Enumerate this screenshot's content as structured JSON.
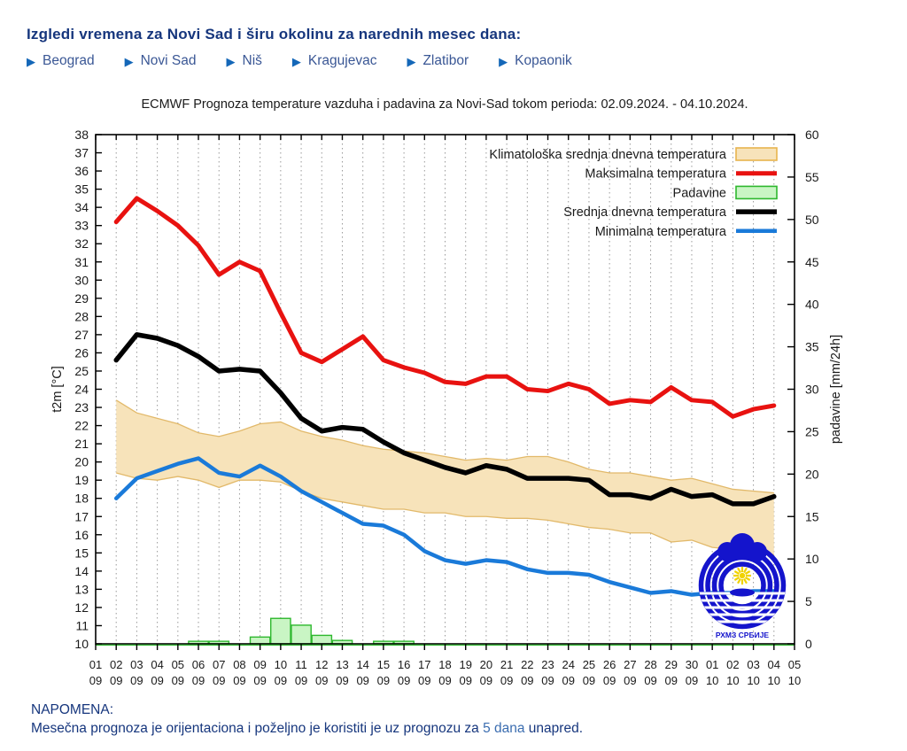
{
  "header": {
    "title": "Izgledi vremena za Novi Sad i širu okolinu za narednih mesec dana:",
    "city_links": [
      {
        "label": "Beograd"
      },
      {
        "label": "Novi Sad"
      },
      {
        "label": "Niš"
      },
      {
        "label": "Kragujevac"
      },
      {
        "label": "Zlatibor"
      },
      {
        "label": "Kopaonik"
      }
    ],
    "arrow_glyph": "▶"
  },
  "footer": {
    "note_heading": "NAPOMENA:",
    "note_before": "Mesečna prognoza je orijentaciona i poželjno je koristiti je uz prognozu za ",
    "note_link": "5 dana",
    "note_after": " unapred."
  },
  "logo": {
    "text": "РХМЗ СРБИЈЕ",
    "color": "#1414cc",
    "sun_color": "#f0d200"
  },
  "colors": {
    "heading_navy": "#16367d",
    "link_blue": "#3a5795",
    "arrow_blue": "#1467b8",
    "max_red": "#e81210",
    "mean_black": "#000000",
    "min_blue": "#1a7ad9",
    "band_fill": "#f7e3ba",
    "band_edge": "#e2b96a",
    "bar_fill": "#c9f5c4",
    "bar_edge": "#2eb82e",
    "grid_gray": "#999999"
  },
  "chart_data": {
    "type": "line+bar",
    "title": "ECMWF Prognoza temperature vazduha i padavina za Novi-Sad tokom perioda: 02.09.2024. - 04.10.2024.",
    "x_axis": {
      "tick_days": [
        "01",
        "02",
        "03",
        "04",
        "05",
        "06",
        "07",
        "08",
        "09",
        "10",
        "11",
        "12",
        "13",
        "14",
        "15",
        "16",
        "17",
        "18",
        "19",
        "20",
        "21",
        "22",
        "23",
        "24",
        "25",
        "26",
        "27",
        "28",
        "29",
        "30",
        "01",
        "02",
        "03",
        "04",
        "05"
      ],
      "tick_months": [
        "09",
        "09",
        "09",
        "09",
        "09",
        "09",
        "09",
        "09",
        "09",
        "09",
        "09",
        "09",
        "09",
        "09",
        "09",
        "09",
        "09",
        "09",
        "09",
        "09",
        "09",
        "09",
        "09",
        "09",
        "09",
        "09",
        "09",
        "09",
        "09",
        "09",
        "10",
        "10",
        "10",
        "10",
        "10"
      ],
      "data_start_tick": 1
    },
    "y_left": {
      "label": "t2m [°C]",
      "min": 10,
      "max": 38,
      "step": 1
    },
    "y_right": {
      "label": "padavine [mm/24h]",
      "min": 0,
      "max": 60,
      "step": 5
    },
    "grid": {
      "vertical_dotted": true,
      "horizontal": false
    },
    "legend_position": "top-right-inside",
    "band": {
      "name": "Klimatološka srednja dnevna temperatura",
      "upper": [
        23.4,
        22.7,
        22.4,
        22.1,
        21.6,
        21.4,
        21.7,
        22.1,
        22.2,
        21.7,
        21.4,
        21.2,
        20.9,
        20.7,
        20.6,
        20.5,
        20.3,
        20.1,
        20.2,
        20.1,
        20.3,
        20.3,
        20.0,
        19.6,
        19.4,
        19.4,
        19.2,
        19.0,
        19.1,
        18.8,
        18.5,
        18.4,
        18.3
      ],
      "lower": [
        19.4,
        19.1,
        19.0,
        19.2,
        19.0,
        18.6,
        19.0,
        19.0,
        18.9,
        18.4,
        18.0,
        17.8,
        17.6,
        17.4,
        17.4,
        17.2,
        17.2,
        17.0,
        17.0,
        16.9,
        16.9,
        16.8,
        16.6,
        16.4,
        16.3,
        16.1,
        16.1,
        15.6,
        15.7,
        15.3,
        15.2,
        15.0,
        14.9
      ]
    },
    "series": [
      {
        "name": "Maksimalna temperatura",
        "color": "#e81210",
        "width": 5,
        "values": [
          33.2,
          34.5,
          33.8,
          33.0,
          31.9,
          30.3,
          31.0,
          30.5,
          28.2,
          26.0,
          25.5,
          26.2,
          26.9,
          25.6,
          25.2,
          24.9,
          24.4,
          24.3,
          24.7,
          24.7,
          24.0,
          23.9,
          24.3,
          24.0,
          23.2,
          23.4,
          23.3,
          24.1,
          23.4,
          23.3,
          22.5,
          22.9,
          23.1
        ]
      },
      {
        "name": "Srednja dnevna temperatura",
        "color": "#000000",
        "width": 5.5,
        "values": [
          25.6,
          27.0,
          26.8,
          26.4,
          25.8,
          25.0,
          25.1,
          25.0,
          23.8,
          22.4,
          21.7,
          21.9,
          21.8,
          21.1,
          20.5,
          20.1,
          19.7,
          19.4,
          19.8,
          19.6,
          19.1,
          19.1,
          19.1,
          19.0,
          18.2,
          18.2,
          18.0,
          18.5,
          18.1,
          18.2,
          17.7,
          17.7,
          18.1
        ]
      },
      {
        "name": "Minimalna temperatura",
        "color": "#1a7ad9",
        "width": 4.5,
        "values": [
          18.0,
          19.1,
          19.5,
          19.9,
          20.2,
          19.4,
          19.2,
          19.8,
          19.2,
          18.4,
          17.8,
          17.2,
          16.6,
          16.5,
          16.0,
          15.1,
          14.6,
          14.4,
          14.6,
          14.5,
          14.1,
          13.9,
          13.9,
          13.8,
          13.4,
          13.1,
          12.8,
          12.9,
          12.7,
          12.8,
          12.8,
          12.9,
          12.9
        ]
      }
    ],
    "bars": {
      "name": "Padavine",
      "axis": "right",
      "values": [
        0,
        0,
        0,
        0,
        0.3,
        0.3,
        0,
        0.8,
        3.0,
        2.2,
        1.0,
        0.4,
        0,
        0.3,
        0.3,
        0,
        0,
        0,
        0,
        0,
        0,
        0,
        0,
        0,
        0,
        0,
        0,
        0,
        0,
        0,
        0,
        0,
        0
      ]
    },
    "legend": [
      {
        "label": "Klimatološka srednja dnevna temperatura",
        "swatch": "band"
      },
      {
        "label": "Maksimalna temperatura",
        "swatch": "line",
        "color": "#e81210",
        "width": 5
      },
      {
        "label": "Padavine",
        "swatch": "bar"
      },
      {
        "label": "Srednja dnevna temperatura",
        "swatch": "line",
        "color": "#000000",
        "width": 5.5
      },
      {
        "label": "Minimalna temperatura",
        "swatch": "line",
        "color": "#1a7ad9",
        "width": 4.5
      }
    ]
  }
}
